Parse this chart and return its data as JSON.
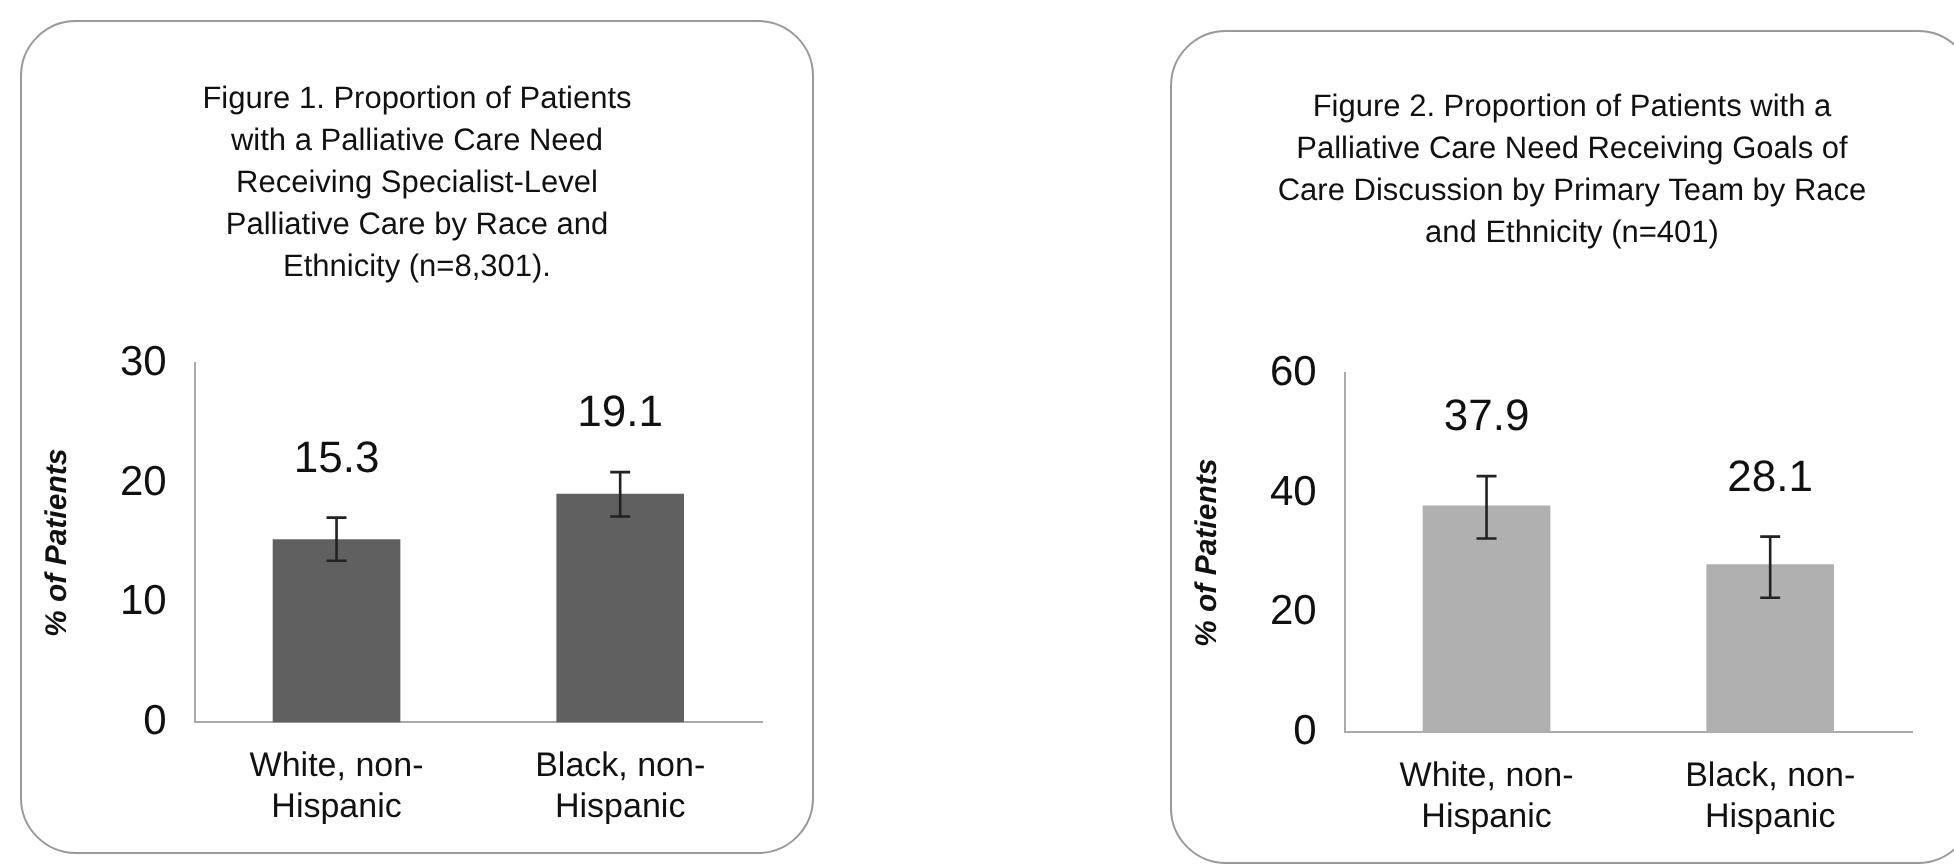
{
  "chart_data": [
    {
      "type": "bar",
      "title": "Figure 1. Proportion of Patients with a Palliative Care Need Receiving Specialist-Level Palliative Care by Race and Ethnicity (n=8,301).",
      "ylabel": "% of Patients",
      "categories": [
        "White, non-Hispanic",
        "Black, non-Hispanic"
      ],
      "values": [
        15.3,
        19.1
      ],
      "color": "#606060",
      "errors": [
        [
          13.5,
          17.1
        ],
        [
          17.2,
          20.9
        ]
      ],
      "ylim": [
        0,
        30
      ],
      "yticks": [
        0,
        10,
        20,
        30
      ],
      "grid": false,
      "legend": false,
      "data_labels": true
    },
    {
      "type": "bar",
      "title": "Figure 2. Proportion of Patients with a Palliative Care Need Receiving Goals of Care Discussion by Primary Team by Race and Ethnicity (n=401)",
      "ylabel": "% of Patients",
      "categories": [
        "White, non-Hispanic",
        "Black, non-Hispanic"
      ],
      "values": [
        37.9,
        28.1
      ],
      "color": "#b0b0b0",
      "errors": [
        [
          32.4,
          42.8
        ],
        [
          22.5,
          32.7
        ]
      ],
      "ylim": [
        0,
        60
      ],
      "yticks": [
        0,
        20,
        40,
        60
      ],
      "grid": false,
      "legend": false,
      "data_labels": true
    }
  ]
}
